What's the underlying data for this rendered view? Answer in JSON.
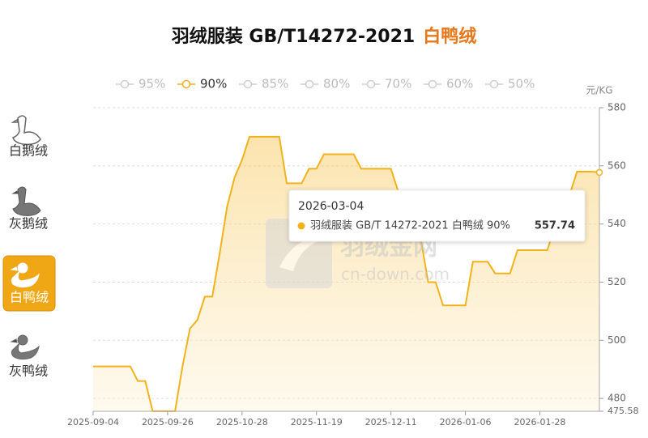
{
  "chart_data": {
    "type": "line",
    "title_main": "羽绒服装 GB/T14272-2021",
    "title_highlight": "白鸭绒",
    "y_unit": "元/KG",
    "categories": [
      "2025-09-04",
      null,
      null,
      null,
      null,
      null,
      null,
      null,
      null,
      null,
      "2025-09-26",
      null,
      null,
      null,
      null,
      null,
      null,
      null,
      null,
      null,
      "2025-10-28",
      null,
      null,
      null,
      null,
      null,
      null,
      null,
      null,
      null,
      "2025-11-19",
      null,
      null,
      null,
      null,
      null,
      null,
      null,
      null,
      null,
      "2025-12-11",
      null,
      null,
      null,
      null,
      null,
      null,
      null,
      null,
      null,
      "2026-01-06",
      null,
      null,
      null,
      null,
      null,
      null,
      null,
      null,
      null,
      "2026-01-28",
      null,
      null,
      null,
      null,
      null,
      null,
      null,
      null
    ],
    "series": [
      {
        "name": "95%",
        "color": "#cccccc",
        "hidden": true
      },
      {
        "name": "90%",
        "color": "#f2b21c",
        "values": [
          491,
          491,
          491,
          491,
          491,
          491,
          486,
          486,
          475.6,
          475.6,
          475.6,
          475.6,
          491,
          504,
          507,
          515,
          515,
          530,
          546,
          556,
          562,
          570,
          570,
          570,
          570,
          570,
          554,
          554,
          554,
          559,
          559,
          564,
          564,
          564,
          564,
          564,
          559,
          559,
          559,
          559,
          559,
          551,
          543,
          535,
          535,
          520,
          520,
          512,
          512,
          512,
          512,
          527,
          527,
          527,
          523,
          523,
          523,
          531,
          531,
          531,
          531,
          531,
          539,
          550,
          550,
          558,
          558,
          558,
          557.74
        ]
      },
      {
        "name": "85%",
        "color": "#cccccc",
        "hidden": true
      },
      {
        "name": "80%",
        "color": "#cccccc",
        "hidden": true
      },
      {
        "name": "70%",
        "color": "#cccccc",
        "hidden": true
      },
      {
        "name": "60%",
        "color": "#cccccc",
        "hidden": true
      },
      {
        "name": "50%",
        "color": "#cccccc",
        "hidden": true
      }
    ],
    "ylim": [
      475.58,
      580
    ],
    "yticks": [
      475.58,
      480,
      500,
      520,
      540,
      560,
      580
    ],
    "grid": true,
    "tooltip": {
      "date": "2026-03-04",
      "label": "羽绒服装 GB/T 14272-2021 白鸭绒 90%",
      "series": 1,
      "index": 68
    },
    "watermark": {
      "name": "羽绒金网",
      "site": "cn-down.com"
    }
  },
  "sidebar": {
    "items": [
      "白鹅绒",
      "灰鹅绒",
      "白鸭绒",
      "灰鸭绒"
    ],
    "active": 2
  }
}
